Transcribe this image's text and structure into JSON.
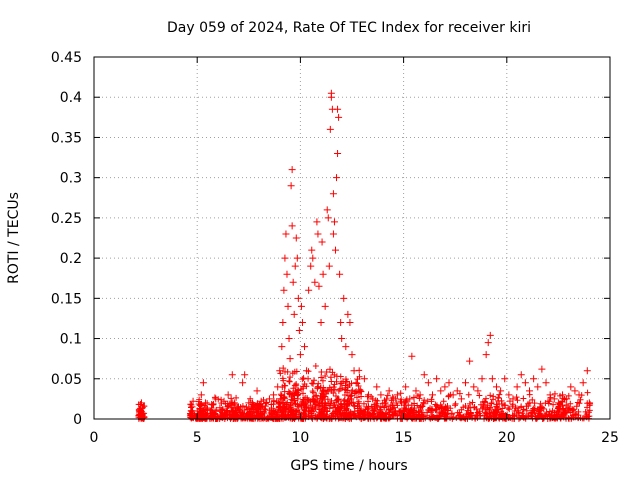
{
  "chart_data": {
    "type": "scatter",
    "title": "Day 059 of 2024, Rate Of TEC Index for receiver kiri",
    "xlabel": "GPS time / hours",
    "ylabel": "ROTI / TECUs",
    "xlim": [
      0,
      25
    ],
    "ylim": [
      0,
      0.45
    ],
    "xticks": [
      0,
      5,
      10,
      15,
      20,
      25
    ],
    "xtick_labels": [
      "0",
      "5",
      "10",
      "15",
      "20",
      "25"
    ],
    "yticks": [
      0,
      0.05,
      0.1,
      0.15,
      0.2,
      0.25,
      0.3,
      0.35,
      0.4,
      0.45
    ],
    "ytick_labels": [
      "0",
      "0.05",
      "0.1",
      "0.15",
      "0.2",
      "0.25",
      "0.3",
      "0.35",
      "0.4",
      "0.45"
    ],
    "grid": true,
    "marker": "+",
    "series": [
      {
        "name": "ROTI",
        "color": "#ff0000",
        "points": [
          [
            2.2,
            0.006
          ],
          [
            2.2,
            0.012
          ],
          [
            2.25,
            0.018
          ],
          [
            2.3,
            0.009
          ],
          [
            2.3,
            0.02
          ],
          [
            2.35,
            0.014
          ],
          [
            2.4,
            0.007
          ],
          [
            2.4,
            0.016
          ],
          [
            4.7,
            0.005
          ],
          [
            4.75,
            0.015
          ],
          [
            4.8,
            0.022
          ],
          [
            5.0,
            0.01
          ],
          [
            5.2,
            0.03
          ],
          [
            5.3,
            0.045
          ],
          [
            5.4,
            0.02
          ],
          [
            5.5,
            0.012
          ],
          [
            5.7,
            0.018
          ],
          [
            5.9,
            0.025
          ],
          [
            6.1,
            0.014
          ],
          [
            6.3,
            0.022
          ],
          [
            6.5,
            0.03
          ],
          [
            6.7,
            0.055
          ],
          [
            6.8,
            0.02
          ],
          [
            7.0,
            0.015
          ],
          [
            7.2,
            0.045
          ],
          [
            7.3,
            0.055
          ],
          [
            7.5,
            0.02
          ],
          [
            7.7,
            0.018
          ],
          [
            7.9,
            0.035
          ],
          [
            8.1,
            0.022
          ],
          [
            8.3,
            0.016
          ],
          [
            8.5,
            0.025
          ],
          [
            8.7,
            0.03
          ],
          [
            8.9,
            0.04
          ],
          [
            9.0,
            0.06
          ],
          [
            9.1,
            0.09
          ],
          [
            9.15,
            0.12
          ],
          [
            9.2,
            0.16
          ],
          [
            9.25,
            0.2
          ],
          [
            9.3,
            0.23
          ],
          [
            9.35,
            0.18
          ],
          [
            9.4,
            0.14
          ],
          [
            9.45,
            0.1
          ],
          [
            9.5,
            0.075
          ],
          [
            9.55,
            0.29
          ],
          [
            9.6,
            0.31
          ],
          [
            9.6,
            0.24
          ],
          [
            9.65,
            0.17
          ],
          [
            9.7,
            0.13
          ],
          [
            9.75,
            0.19
          ],
          [
            9.8,
            0.225
          ],
          [
            9.85,
            0.2
          ],
          [
            9.9,
            0.15
          ],
          [
            9.95,
            0.11
          ],
          [
            10.0,
            0.08
          ],
          [
            10.05,
            0.14
          ],
          [
            10.1,
            0.12
          ],
          [
            10.2,
            0.09
          ],
          [
            10.3,
            0.06
          ],
          [
            10.4,
            0.16
          ],
          [
            10.5,
            0.19
          ],
          [
            10.55,
            0.21
          ],
          [
            10.6,
            0.2
          ],
          [
            10.7,
            0.17
          ],
          [
            10.8,
            0.245
          ],
          [
            10.85,
            0.23
          ],
          [
            10.9,
            0.165
          ],
          [
            11.0,
            0.12
          ],
          [
            11.05,
            0.22
          ],
          [
            11.1,
            0.18
          ],
          [
            11.2,
            0.14
          ],
          [
            11.3,
            0.26
          ],
          [
            11.35,
            0.25
          ],
          [
            11.4,
            0.19
          ],
          [
            11.45,
            0.36
          ],
          [
            11.5,
            0.4
          ],
          [
            11.5,
            0.405
          ],
          [
            11.55,
            0.385
          ],
          [
            11.6,
            0.28
          ],
          [
            11.6,
            0.23
          ],
          [
            11.65,
            0.245
          ],
          [
            11.7,
            0.21
          ],
          [
            11.75,
            0.3
          ],
          [
            11.8,
            0.33
          ],
          [
            11.8,
            0.385
          ],
          [
            11.85,
            0.375
          ],
          [
            11.9,
            0.18
          ],
          [
            11.95,
            0.12
          ],
          [
            12.0,
            0.1
          ],
          [
            12.1,
            0.15
          ],
          [
            12.2,
            0.09
          ],
          [
            12.3,
            0.13
          ],
          [
            12.4,
            0.12
          ],
          [
            12.5,
            0.08
          ],
          [
            12.6,
            0.06
          ],
          [
            12.7,
            0.045
          ],
          [
            12.9,
            0.035
          ],
          [
            13.1,
            0.05
          ],
          [
            13.3,
            0.03
          ],
          [
            13.5,
            0.025
          ],
          [
            13.7,
            0.04
          ],
          [
            13.9,
            0.03
          ],
          [
            14.1,
            0.02
          ],
          [
            14.3,
            0.035
          ],
          [
            14.5,
            0.025
          ],
          [
            14.7,
            0.03
          ],
          [
            14.9,
            0.02
          ],
          [
            15.1,
            0.04
          ],
          [
            15.3,
            0.025
          ],
          [
            15.4,
            0.078
          ],
          [
            15.6,
            0.035
          ],
          [
            15.8,
            0.03
          ],
          [
            16.0,
            0.055
          ],
          [
            16.2,
            0.045
          ],
          [
            16.4,
            0.03
          ],
          [
            16.6,
            0.05
          ],
          [
            16.8,
            0.035
          ],
          [
            17.0,
            0.04
          ],
          [
            17.2,
            0.045
          ],
          [
            17.4,
            0.03
          ],
          [
            17.6,
            0.035
          ],
          [
            17.8,
            0.025
          ],
          [
            18.0,
            0.045
          ],
          [
            18.2,
            0.072
          ],
          [
            18.4,
            0.04
          ],
          [
            18.6,
            0.035
          ],
          [
            18.8,
            0.05
          ],
          [
            19.0,
            0.08
          ],
          [
            19.1,
            0.095
          ],
          [
            19.2,
            0.104
          ],
          [
            19.3,
            0.05
          ],
          [
            19.5,
            0.04
          ],
          [
            19.7,
            0.035
          ],
          [
            19.9,
            0.05
          ],
          [
            20.1,
            0.03
          ],
          [
            20.3,
            0.025
          ],
          [
            20.5,
            0.04
          ],
          [
            20.7,
            0.055
          ],
          [
            20.9,
            0.045
          ],
          [
            21.1,
            0.035
          ],
          [
            21.3,
            0.05
          ],
          [
            21.5,
            0.04
          ],
          [
            21.7,
            0.062
          ],
          [
            21.9,
            0.045
          ],
          [
            22.1,
            0.03
          ],
          [
            22.3,
            0.025
          ],
          [
            22.5,
            0.02
          ],
          [
            22.7,
            0.03
          ],
          [
            22.9,
            0.025
          ],
          [
            23.1,
            0.04
          ],
          [
            23.3,
            0.035
          ],
          [
            23.5,
            0.03
          ],
          [
            23.7,
            0.045
          ],
          [
            23.9,
            0.06
          ],
          [
            24.0,
            0.02
          ]
        ]
      }
    ]
  }
}
